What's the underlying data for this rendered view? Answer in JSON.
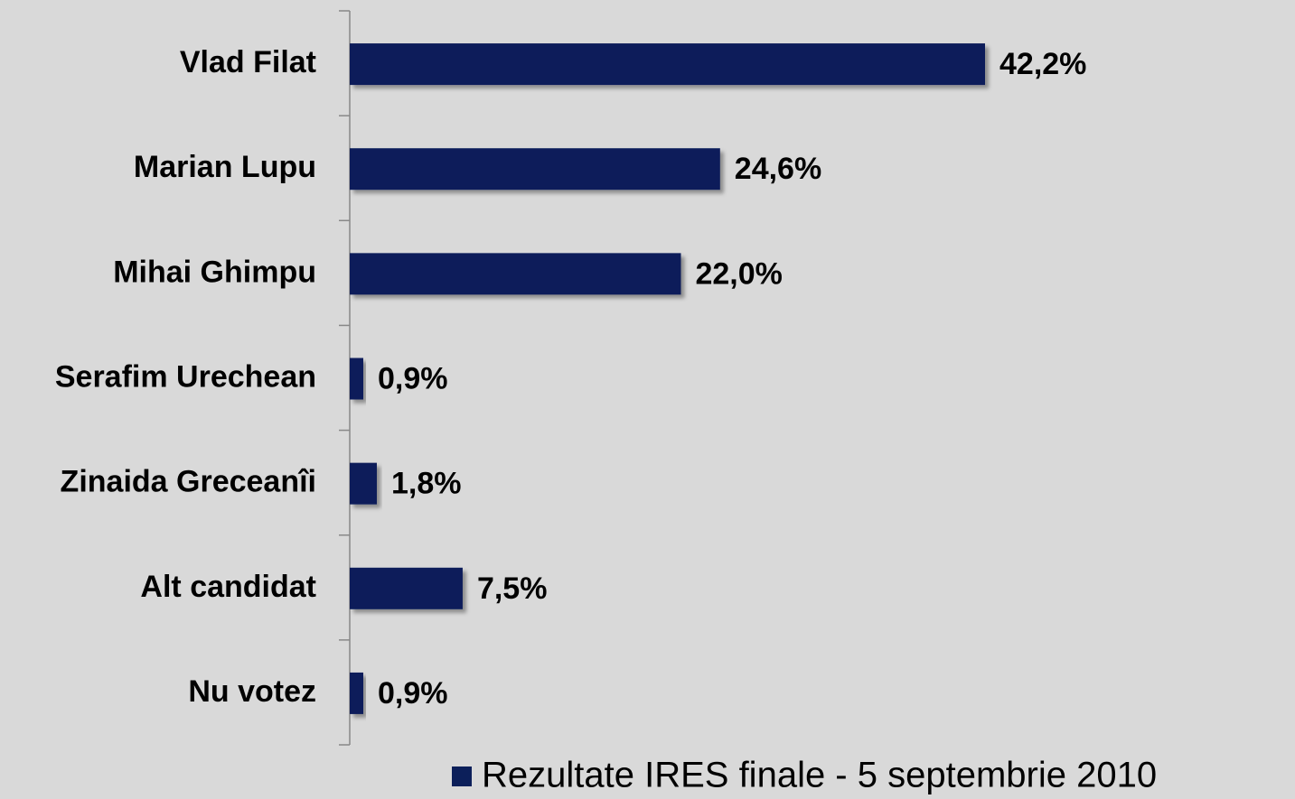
{
  "chart_data": {
    "type": "hbar",
    "categories": [
      "Vlad Filat",
      "Marian Lupu",
      "Mihai Ghimpu",
      "Serafim Urechean",
      "Zinaida Greceanîi",
      "Alt candidat",
      "Nu votez"
    ],
    "series": [
      {
        "name": "Rezultate IRES finale - 5 septembrie 2010",
        "color": "#0c1f5a",
        "values": [
          42.2,
          24.6,
          22.0,
          0.9,
          1.8,
          7.5,
          0.9
        ],
        "value_labels": [
          "42,2%",
          "24,6%",
          "22,0%",
          "0,9%",
          "1,8%",
          "7,5%",
          "0,9%"
        ]
      }
    ],
    "legend": "bottom-right"
  }
}
